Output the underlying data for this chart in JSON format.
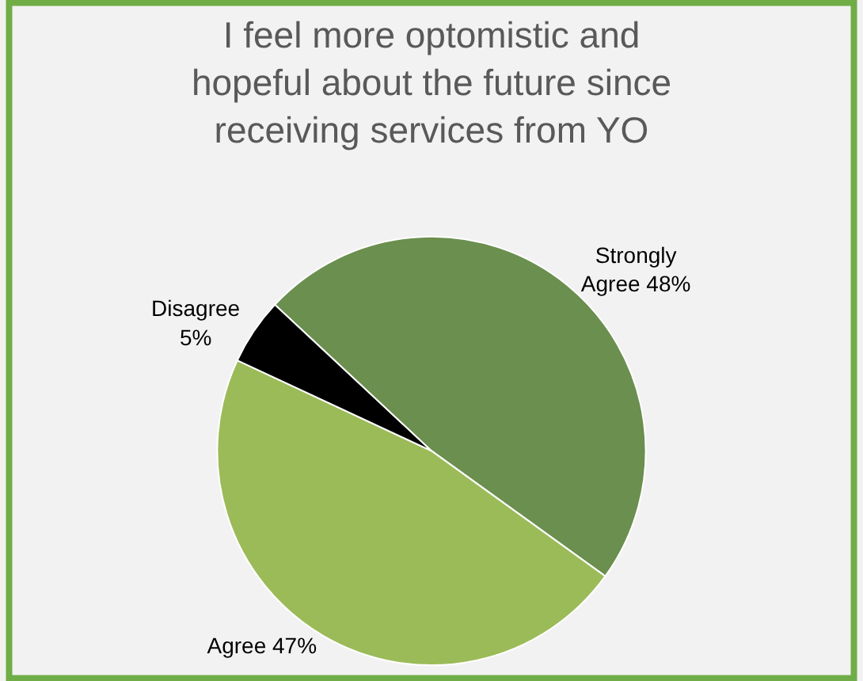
{
  "chart_data": {
    "type": "pie",
    "title": "I feel more optomistic and\nhopeful about the future since\nreceiving services from YO",
    "categories": [
      "Strongly Agree",
      "Agree",
      "Disagree"
    ],
    "values": [
      48,
      47,
      5
    ],
    "colors": [
      "#6b8f4e",
      "#9bbb59",
      "#000000"
    ],
    "value_labels": [
      "48%",
      "47%",
      "5%"
    ],
    "legend": false
  }
}
